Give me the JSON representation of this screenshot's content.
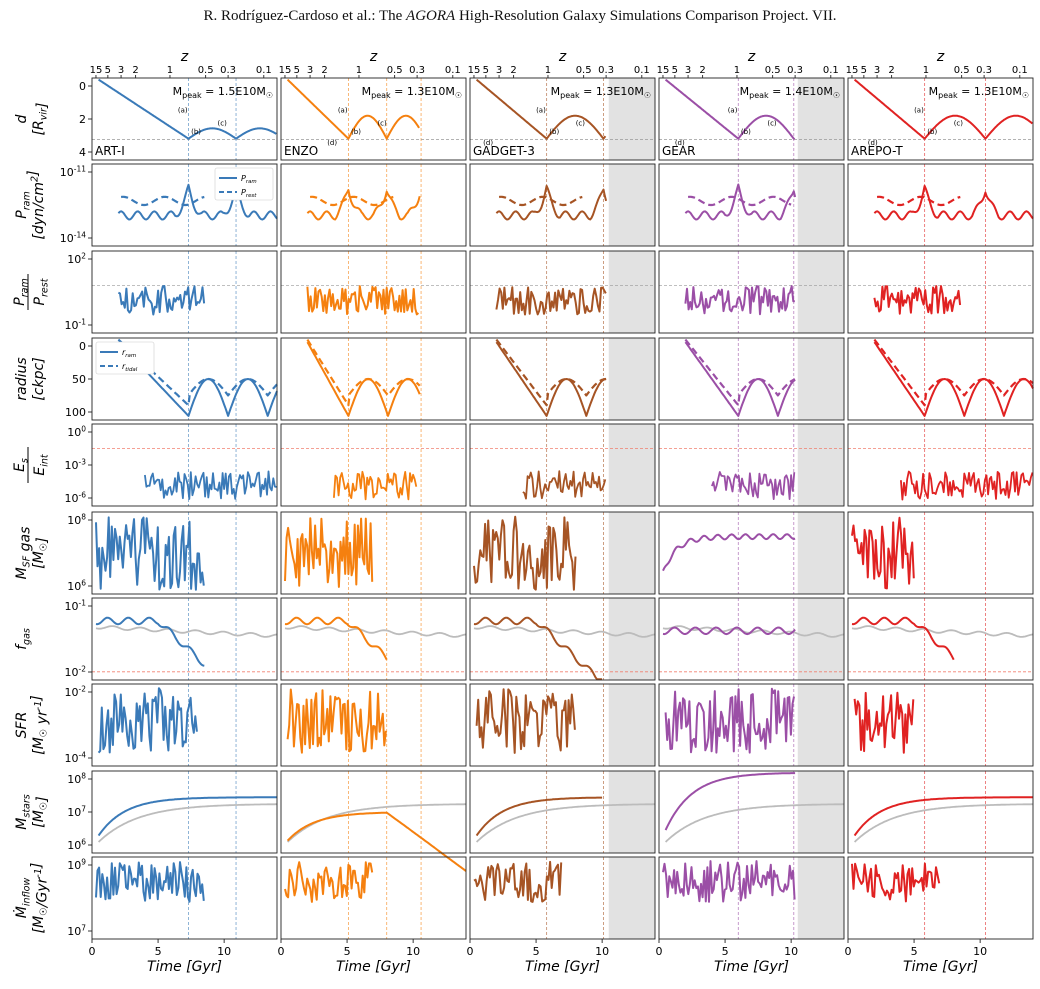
{
  "header": {
    "pre": "R. Rodríguez-Cardoso et al.: The ",
    "em": "AGORA",
    "post": " High-Resolution Galaxy Simulations Comparison Project. VII."
  },
  "codes": [
    {
      "name": "ART-I",
      "color": "#3a7ab8",
      "mpeak": "1.5E10M",
      "end": 14.0,
      "shade": false,
      "vlines": [
        7.3,
        10.9
      ]
    },
    {
      "name": "ENZO",
      "color": "#f5800f",
      "mpeak": "1.3E10M",
      "end": 10.5,
      "shade": false,
      "vlines": [
        5.1,
        8.0,
        10.6
      ]
    },
    {
      "name": "GADGET-3",
      "color": "#a65424",
      "mpeak": "1.3E10M",
      "end": 10.3,
      "shade": true,
      "vlines": [
        5.8,
        10.1
      ]
    },
    {
      "name": "GEAR",
      "color": "#9b4fa6",
      "mpeak": "1.4E10M",
      "end": 10.3,
      "shade": true,
      "vlines": [
        6.0,
        10.2
      ]
    },
    {
      "name": "AREPO-T",
      "color": "#e02222",
      "mpeak": "1.3E10M",
      "end": 14.0,
      "shade": false,
      "vlines": [
        5.8,
        10.4
      ]
    }
  ],
  "mpeak_prefix": "M",
  "mpeak_sub": "peak",
  "mpeak_eq": " = ",
  "mpeak_sun": "☉",
  "top_axis": {
    "label": "z",
    "ticks": [
      "15",
      "5",
      "3",
      "2",
      "1",
      "0.5",
      "0.3",
      "0.1"
    ],
    "tick_times": [
      0.3,
      1.2,
      2.2,
      3.3,
      5.9,
      8.6,
      10.3,
      13.0
    ]
  },
  "x_axis": {
    "label": "Time [Gyr]",
    "ticks": [
      "0",
      "5",
      "10"
    ],
    "tick_values": [
      0,
      5,
      10
    ],
    "range": [
      0,
      14
    ]
  },
  "point_labels": [
    "(a)",
    "(b)",
    "(c)",
    "(d)"
  ],
  "rows": [
    {
      "key": "d",
      "ylabel_lines": [
        "d",
        "[R_vir]"
      ],
      "ticks": [
        "0",
        "2",
        "4"
      ],
      "scale": "linear",
      "ylim": [
        0,
        4
      ]
    },
    {
      "key": "Pram",
      "ylabel_lines": [
        "P_ram",
        "[dyn/cm^2]"
      ],
      "ticks": [
        "10^-11",
        "10^-14"
      ],
      "scale": "log",
      "legend": [
        "P_ram",
        "P_rest"
      ]
    },
    {
      "key": "ratio",
      "ylabel_lines": [
        "P_ram",
        "P_rest"
      ],
      "ticks": [
        "10^2",
        "10^-1"
      ],
      "scale": "log"
    },
    {
      "key": "radius",
      "ylabel_lines": [
        "radius",
        "[ckpc]"
      ],
      "ticks": [
        "0",
        "50",
        "100"
      ],
      "scale": "linear",
      "ylim": [
        0,
        100
      ],
      "legend": [
        "r_ram",
        "r_tidal"
      ]
    },
    {
      "key": "Es",
      "ylabel_lines": [
        "E_s",
        "E_int"
      ],
      "ticks": [
        "10^0",
        "10^-3",
        "10^-6"
      ],
      "scale": "log"
    },
    {
      "key": "Msf",
      "ylabel_lines": [
        "M_SF gas",
        "[M_☉]"
      ],
      "ticks": [
        "10^8",
        "10^6"
      ],
      "scale": "log"
    },
    {
      "key": "fgas",
      "ylabel_lines": [
        "f_gas"
      ],
      "ticks": [
        "10^-1",
        "10^-2"
      ],
      "scale": "log"
    },
    {
      "key": "sfr",
      "ylabel_lines": [
        "SFR",
        "[M_☉ yr^-1]"
      ],
      "ticks": [
        "10^-2",
        "10^-4"
      ],
      "scale": "log"
    },
    {
      "key": "mstar",
      "ylabel_lines": [
        "M_stars",
        "[M_☉]"
      ],
      "ticks": [
        "10^8",
        "10^7",
        "10^6"
      ],
      "scale": "log"
    },
    {
      "key": "inflow",
      "ylabel_lines": [
        "Ṁ_inflow",
        "[M_☉/Gyr^-1]"
      ],
      "ticks": [
        "10^9",
        "10^7"
      ],
      "scale": "log"
    }
  ],
  "colors": {
    "reference": "#bcbcbc",
    "shade": "#e2e2e2",
    "guide": "#999999",
    "threshold": "#f08070"
  }
}
